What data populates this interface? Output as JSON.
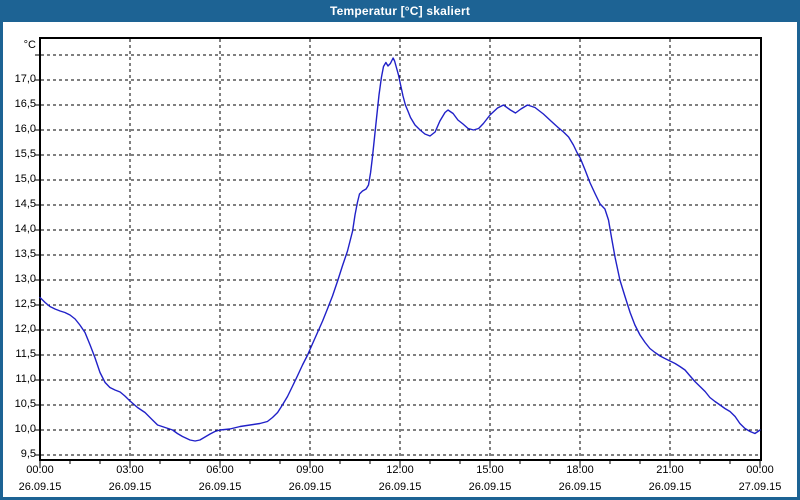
{
  "window": {
    "title": "Temperatur [°C] skaliert"
  },
  "colors": {
    "titlebar": "#1d6394",
    "window_border": "#1d6394",
    "background": "#ffffff",
    "grid": "#000000",
    "axis": "#000000",
    "text": "#000000",
    "title_text": "#ffffff",
    "line": "#2121c8"
  },
  "chart_data": {
    "type": "line",
    "title": "Temperatur [°C] skaliert",
    "unit_label": "°C",
    "grid": "dashed",
    "legend": "none",
    "x_axis": {
      "range_hours": [
        0,
        24
      ],
      "minor_tick_every_hours": 1,
      "major_tick_every_hours": 3,
      "ticks": [
        {
          "hour": 0,
          "time": "00:00",
          "date": "26.09.15"
        },
        {
          "hour": 3,
          "time": "03:00",
          "date": "26.09.15"
        },
        {
          "hour": 6,
          "time": "06:00",
          "date": "26.09.15"
        },
        {
          "hour": 9,
          "time": "09:00",
          "date": "26.09.15"
        },
        {
          "hour": 12,
          "time": "12:00",
          "date": "26.09.15"
        },
        {
          "hour": 15,
          "time": "15:00",
          "date": "26.09.15"
        },
        {
          "hour": 18,
          "time": "18:00",
          "date": "26.09.15"
        },
        {
          "hour": 21,
          "time": "21:00",
          "date": "26.09.15"
        },
        {
          "hour": 24,
          "time": "00:00",
          "date": "27.09.15"
        }
      ]
    },
    "y_axis": {
      "decimal_separator": ",",
      "tick_step": 0.5,
      "gridline_values": [
        9.5,
        10.0,
        10.5,
        11.0,
        11.5,
        12.0,
        12.5,
        13.0,
        13.5,
        14.0,
        14.5,
        15.0,
        15.5,
        16.0,
        16.5,
        17.0,
        17.5
      ],
      "labeled_values": [
        17.0,
        16.5,
        16.0,
        15.5,
        15.0,
        14.5,
        14.0,
        13.5,
        13.0,
        12.5,
        12.0,
        11.5,
        11.0,
        10.5,
        10.0,
        9.5
      ],
      "labels": [
        "17,0",
        "16,5",
        "16,0",
        "15,5",
        "15,0",
        "14,5",
        "14,0",
        "13,5",
        "13,0",
        "12,5",
        "12,0",
        "11,5",
        "11,0",
        "10,5",
        "10,0",
        "9,5"
      ],
      "unlabeled_top_gridline": 17.5,
      "range": [
        9.4,
        17.84
      ]
    },
    "series": [
      {
        "name": "Temperatur",
        "color": "#2121c8",
        "points": [
          [
            0,
            12.65
          ],
          [
            0.17,
            12.55
          ],
          [
            0.33,
            12.47
          ],
          [
            0.5,
            12.42
          ],
          [
            0.67,
            12.38
          ],
          [
            0.83,
            12.35
          ],
          [
            1,
            12.3
          ],
          [
            1.17,
            12.22
          ],
          [
            1.33,
            12.1
          ],
          [
            1.5,
            11.95
          ],
          [
            1.67,
            11.7
          ],
          [
            1.83,
            11.45
          ],
          [
            2,
            11.15
          ],
          [
            2.17,
            10.95
          ],
          [
            2.33,
            10.85
          ],
          [
            2.5,
            10.8
          ],
          [
            2.67,
            10.76
          ],
          [
            2.83,
            10.68
          ],
          [
            3,
            10.58
          ],
          [
            3.25,
            10.45
          ],
          [
            3.5,
            10.35
          ],
          [
            3.75,
            10.2
          ],
          [
            3.92,
            10.1
          ],
          [
            4.17,
            10.05
          ],
          [
            4.42,
            10.0
          ],
          [
            4.58,
            9.93
          ],
          [
            4.75,
            9.87
          ],
          [
            5,
            9.8
          ],
          [
            5.17,
            9.78
          ],
          [
            5.33,
            9.8
          ],
          [
            5.5,
            9.86
          ],
          [
            5.67,
            9.92
          ],
          [
            5.83,
            9.97
          ],
          [
            6,
            10.0
          ],
          [
            6.33,
            10.02
          ],
          [
            6.67,
            10.07
          ],
          [
            7,
            10.1
          ],
          [
            7.33,
            10.13
          ],
          [
            7.58,
            10.17
          ],
          [
            7.75,
            10.25
          ],
          [
            7.92,
            10.35
          ],
          [
            8.08,
            10.5
          ],
          [
            8.25,
            10.67
          ],
          [
            8.42,
            10.88
          ],
          [
            8.58,
            11.08
          ],
          [
            8.75,
            11.3
          ],
          [
            8.92,
            11.5
          ],
          [
            9.08,
            11.72
          ],
          [
            9.25,
            11.95
          ],
          [
            9.42,
            12.18
          ],
          [
            9.58,
            12.42
          ],
          [
            9.75,
            12.68
          ],
          [
            9.92,
            12.98
          ],
          [
            10.08,
            13.28
          ],
          [
            10.25,
            13.58
          ],
          [
            10.42,
            13.98
          ],
          [
            10.5,
            14.3
          ],
          [
            10.58,
            14.55
          ],
          [
            10.65,
            14.72
          ],
          [
            10.75,
            14.78
          ],
          [
            10.87,
            14.82
          ],
          [
            10.95,
            14.9
          ],
          [
            11.02,
            15.15
          ],
          [
            11.08,
            15.45
          ],
          [
            11.15,
            15.85
          ],
          [
            11.22,
            16.25
          ],
          [
            11.3,
            16.7
          ],
          [
            11.38,
            17.05
          ],
          [
            11.45,
            17.27
          ],
          [
            11.53,
            17.35
          ],
          [
            11.6,
            17.28
          ],
          [
            11.68,
            17.33
          ],
          [
            11.77,
            17.44
          ],
          [
            11.82,
            17.38
          ],
          [
            11.88,
            17.25
          ],
          [
            11.95,
            17.1
          ],
          [
            12.02,
            16.9
          ],
          [
            12.1,
            16.68
          ],
          [
            12.18,
            16.5
          ],
          [
            12.27,
            16.37
          ],
          [
            12.35,
            16.25
          ],
          [
            12.5,
            16.1
          ],
          [
            12.67,
            16.0
          ],
          [
            12.83,
            15.92
          ],
          [
            13,
            15.88
          ],
          [
            13.17,
            15.96
          ],
          [
            13.33,
            16.18
          ],
          [
            13.5,
            16.35
          ],
          [
            13.6,
            16.4
          ],
          [
            13.77,
            16.33
          ],
          [
            13.93,
            16.2
          ],
          [
            14.1,
            16.12
          ],
          [
            14.27,
            16.03
          ],
          [
            14.45,
            16.0
          ],
          [
            14.62,
            16.03
          ],
          [
            14.78,
            16.13
          ],
          [
            15,
            16.3
          ],
          [
            15.25,
            16.44
          ],
          [
            15.45,
            16.5
          ],
          [
            15.68,
            16.4
          ],
          [
            15.85,
            16.34
          ],
          [
            16.03,
            16.42
          ],
          [
            16.25,
            16.5
          ],
          [
            16.5,
            16.45
          ],
          [
            16.78,
            16.32
          ],
          [
            17.05,
            16.17
          ],
          [
            17.27,
            16.05
          ],
          [
            17.45,
            15.96
          ],
          [
            17.62,
            15.86
          ],
          [
            17.78,
            15.7
          ],
          [
            17.9,
            15.55
          ],
          [
            18,
            15.45
          ],
          [
            18.17,
            15.2
          ],
          [
            18.33,
            14.95
          ],
          [
            18.5,
            14.73
          ],
          [
            18.67,
            14.52
          ],
          [
            18.83,
            14.42
          ],
          [
            18.95,
            14.2
          ],
          [
            19.05,
            13.85
          ],
          [
            19.17,
            13.45
          ],
          [
            19.33,
            13.0
          ],
          [
            19.5,
            12.67
          ],
          [
            19.67,
            12.35
          ],
          [
            19.83,
            12.1
          ],
          [
            20,
            11.9
          ],
          [
            20.17,
            11.75
          ],
          [
            20.33,
            11.63
          ],
          [
            20.5,
            11.55
          ],
          [
            20.67,
            11.48
          ],
          [
            20.83,
            11.43
          ],
          [
            21,
            11.38
          ],
          [
            21.17,
            11.33
          ],
          [
            21.33,
            11.27
          ],
          [
            21.5,
            11.2
          ],
          [
            21.67,
            11.08
          ],
          [
            21.83,
            10.97
          ],
          [
            22,
            10.87
          ],
          [
            22.17,
            10.77
          ],
          [
            22.33,
            10.65
          ],
          [
            22.5,
            10.57
          ],
          [
            22.67,
            10.5
          ],
          [
            22.83,
            10.43
          ],
          [
            23,
            10.37
          ],
          [
            23.17,
            10.27
          ],
          [
            23.33,
            10.13
          ],
          [
            23.5,
            10.03
          ],
          [
            23.67,
            9.97
          ],
          [
            23.83,
            9.93
          ],
          [
            23.93,
            9.97
          ],
          [
            24,
            10.0
          ]
        ]
      }
    ]
  }
}
